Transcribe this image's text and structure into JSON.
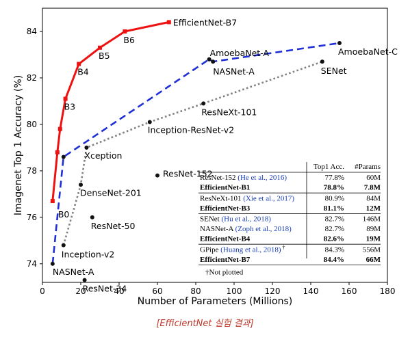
{
  "chart_data": {
    "type": "line",
    "xlabel": "Number of Parameters (Millions)",
    "ylabel": "Imagenet Top 1 Accuracy (%)",
    "xlim": [
      0,
      180
    ],
    "ylim": [
      73.2,
      85
    ],
    "xticks": [
      0,
      20,
      40,
      60,
      80,
      100,
      120,
      140,
      160,
      180
    ],
    "yticks": [
      74,
      76,
      78,
      80,
      82,
      84
    ],
    "grid": false,
    "series": [
      {
        "name": "EfficientNet",
        "color": "#ee1111",
        "style": "solid",
        "marker": "square",
        "points": [
          {
            "label": "B0",
            "x": 5.3,
            "y": 76.7
          },
          {
            "label": "",
            "x": 7.8,
            "y": 78.8
          },
          {
            "label": "",
            "x": 9.2,
            "y": 79.8
          },
          {
            "label": "B3",
            "x": 12,
            "y": 81.1
          },
          {
            "label": "B4",
            "x": 19,
            "y": 82.6
          },
          {
            "label": "B5",
            "x": 30,
            "y": 83.3
          },
          {
            "label": "B6",
            "x": 43,
            "y": 84.0
          },
          {
            "label": "EfficientNet-B7",
            "x": 66,
            "y": 84.4
          }
        ]
      },
      {
        "name": "",
        "color": "#1f2fd6",
        "style": "dashed",
        "marker": "dot",
        "points": [
          {
            "label": "NASNet-A",
            "x": 5.3,
            "y": 74.0
          },
          {
            "label": "",
            "x": 11,
            "y": 78.6
          },
          {
            "label": "AmoebaNet-A",
            "x": 87,
            "y": 82.8
          },
          {
            "label": "NASNet-A",
            "x": 89,
            "y": 82.7
          },
          {
            "label": "AmoebaNet-C",
            "x": 155,
            "y": 83.5
          }
        ]
      },
      {
        "name": "",
        "color": "#808080",
        "style": "dotted",
        "marker": "dot",
        "points": [
          {
            "label": "Inception-v2",
            "x": 11,
            "y": 74.8
          },
          {
            "label": "DenseNet-201",
            "x": 20,
            "y": 77.4
          },
          {
            "label": "Xception",
            "x": 23,
            "y": 79.0
          },
          {
            "label": "Inception-ResNet-v2",
            "x": 56,
            "y": 80.1
          },
          {
            "label": "ResNeXt-101",
            "x": 84,
            "y": 80.9
          },
          {
            "label": "SENet",
            "x": 146,
            "y": 82.7
          }
        ]
      }
    ],
    "standalone_points": [
      {
        "label": "ResNet-152",
        "x": 60,
        "y": 77.8
      },
      {
        "label": "ResNet-50",
        "x": 26,
        "y": 76.0
      },
      {
        "label": "ResNet-34",
        "x": 22,
        "y": 73.3
      }
    ],
    "table": {
      "headers": [
        "Top1 Acc.",
        "#Params"
      ],
      "groups": [
        {
          "rows": [
            {
              "name": "ResNet-152",
              "cite": "(He et al., 2016)",
              "acc": "77.8%",
              "params": "60M",
              "bold": false
            },
            {
              "name": "EfficientNet-B1",
              "cite": "",
              "acc": "78.8%",
              "params": "7.8M",
              "bold": true
            }
          ]
        },
        {
          "rows": [
            {
              "name": "ResNeXt-101",
              "cite": "(Xie et al., 2017)",
              "acc": "80.9%",
              "params": "84M",
              "bold": false
            },
            {
              "name": "EfficientNet-B3",
              "cite": "",
              "acc": "81.1%",
              "params": "12M",
              "bold": true
            }
          ]
        },
        {
          "rows": [
            {
              "name": "SENet",
              "cite": "(Hu et al., 2018)",
              "acc": "82.7%",
              "params": "146M",
              "bold": false
            },
            {
              "name": "NASNet-A",
              "cite": "(Zoph et al., 2018)",
              "acc": "82.7%",
              "params": "89M",
              "bold": false
            },
            {
              "name": "EfficientNet-B4",
              "cite": "",
              "acc": "82.6%",
              "params": "19M",
              "bold": true
            }
          ]
        },
        {
          "rows": [
            {
              "name": "GPipe",
              "cite": "(Huang et al., 2018)",
              "mark": "†",
              "acc": "84.3%",
              "params": "556M",
              "bold": false
            },
            {
              "name": "EfficientNet-B7",
              "cite": "",
              "acc": "84.4%",
              "params": "66M",
              "bold": true
            }
          ]
        }
      ],
      "footnote": "†Not plotted"
    }
  },
  "caption": "[EfficientNet 실험 결과]"
}
